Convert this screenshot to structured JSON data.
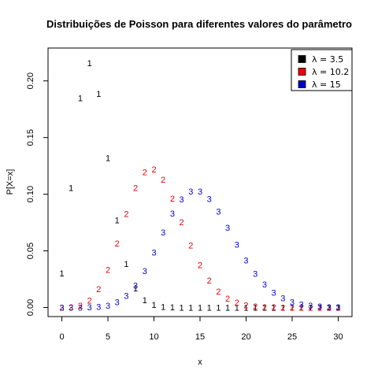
{
  "chart_data": {
    "type": "scatter",
    "title": "Distribuições de Poisson para diferentes valores do parâmetro",
    "xlabel": "x",
    "ylabel": "P[X=x]",
    "xlim": [
      -1.5,
      31.5
    ],
    "ylim": [
      -0.008,
      0.229
    ],
    "xticks": [
      0,
      5,
      10,
      15,
      20,
      25,
      30
    ],
    "xtick_labels": [
      "0",
      "5",
      "10",
      "15",
      "20",
      "25",
      "30"
    ],
    "yticks": [
      0,
      0.05,
      0.1,
      0.15,
      0.2
    ],
    "ytick_labels": [
      "0.00",
      "0.05",
      "0.10",
      "0.15",
      "0.20"
    ],
    "grid": false,
    "legend_position": "top-right",
    "x": [
      0,
      1,
      2,
      3,
      4,
      5,
      6,
      7,
      8,
      9,
      10,
      11,
      12,
      13,
      14,
      15,
      16,
      17,
      18,
      19,
      20,
      21,
      22,
      23,
      24,
      25,
      26,
      27,
      28,
      29,
      30
    ],
    "series": [
      {
        "name": "λ = 3.5",
        "marker": "1",
        "color": "#000000",
        "values": [
          0.0302,
          0.1057,
          0.185,
          0.2158,
          0.1888,
          0.1322,
          0.0771,
          0.0385,
          0.0169,
          0.0066,
          0.0023,
          0.0007,
          0.0002,
          6e-05,
          1e-05,
          0,
          0,
          0,
          0,
          0,
          0,
          0,
          0,
          0,
          0,
          0,
          0,
          0,
          0,
          0,
          0
        ]
      },
      {
        "name": "λ = 10.2",
        "marker": "2",
        "color": "#e8000b",
        "values": [
          4e-05,
          0.0004,
          0.0019,
          0.0064,
          0.0164,
          0.0334,
          0.0568,
          0.0828,
          0.1055,
          0.1196,
          0.122,
          0.1131,
          0.0962,
          0.0755,
          0.055,
          0.0374,
          0.0238,
          0.0143,
          0.0081,
          0.0044,
          0.0022,
          0.0011,
          0.0005,
          0.0002,
          0.0001,
          4e-05,
          2e-05,
          1e-05,
          0,
          0,
          0
        ]
      },
      {
        "name": "λ = 15",
        "marker": "3",
        "color": "#0000cc",
        "values": [
          0,
          5e-06,
          4e-05,
          0.0002,
          0.0006,
          0.0019,
          0.0048,
          0.0104,
          0.0194,
          0.0324,
          0.0486,
          0.0663,
          0.0829,
          0.0956,
          0.1024,
          0.1024,
          0.096,
          0.0847,
          0.0706,
          0.0557,
          0.0418,
          0.0299,
          0.0204,
          0.0133,
          0.0083,
          0.005,
          0.0029,
          0.0016,
          0.0009,
          0.0004,
          0.0002
        ]
      }
    ]
  }
}
